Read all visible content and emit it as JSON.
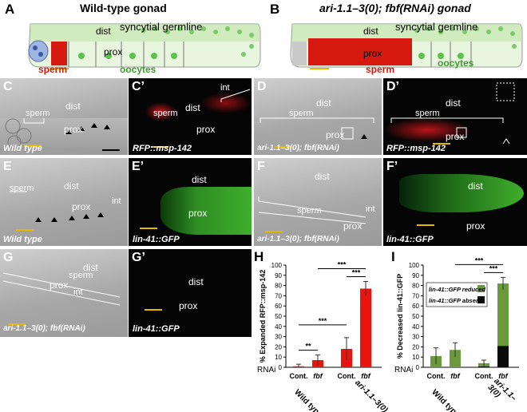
{
  "panels": {
    "A": {
      "label": "A",
      "title": "Wild-type gonad",
      "dist": "dist",
      "germline": "syncytial germline",
      "prox": "prox",
      "sperm": "sperm",
      "oocytes": "oocytes"
    },
    "B": {
      "label": "B",
      "title": "ari-1.1–3(0); fbf(RNAi) gonad",
      "dist": "dist",
      "germline": "syncytial germline",
      "prox": "prox",
      "sperm": "sperm",
      "oocytes": "oocytes"
    },
    "C": {
      "label": "C",
      "sperm": "sperm",
      "dist": "dist",
      "prox": "prox",
      "caption": "Wild type"
    },
    "C2": {
      "label": "C’",
      "int": "int",
      "dist": "dist",
      "sperm": "sperm",
      "prox": "prox",
      "caption": "RFP::msp-142"
    },
    "D": {
      "label": "D",
      "dist": "dist",
      "sperm": "sperm",
      "prox": "prox",
      "caption": "ari-1.1–3(0); fbf(RNAi)"
    },
    "D2": {
      "label": "D’",
      "dist": "dist",
      "sperm": "sperm",
      "prox": "prox",
      "caption": "RFP::msp-142"
    },
    "E": {
      "label": "E",
      "sperm": "sperm",
      "dist": "dist",
      "prox": "prox",
      "int": "int",
      "caption": "Wild type"
    },
    "E2": {
      "label": "E’",
      "dist": "dist",
      "prox": "prox",
      "caption": "lin-41::GFP"
    },
    "F": {
      "label": "F",
      "dist": "dist",
      "sperm": "sperm",
      "prox": "prox",
      "int": "int",
      "caption": "ari-1.1–3(0); fbf(RNAi)"
    },
    "F2": {
      "label": "F’",
      "dist": "dist",
      "prox": "prox",
      "caption": "lin-41::GFP"
    },
    "G": {
      "label": "G",
      "dist": "dist",
      "sperm": "sperm",
      "prox": "prox",
      "int": "int",
      "caption": "ari-1.1–3(0); fbf(RNAi)"
    },
    "G2": {
      "label": "G’",
      "dist": "dist",
      "prox": "prox",
      "caption": "lin-41::GFP"
    },
    "H": {
      "label": "H",
      "rnai": "RNAi",
      "group1": "Wild type",
      "group2": "ari-1.1–3(0)"
    },
    "I": {
      "label": "I",
      "rnai": "RNAi",
      "group1": "Wild type",
      "group2": "ari-1.1–3(0)"
    }
  },
  "chart_data": [
    {
      "type": "bar",
      "title": "",
      "ylabel": "% Expanded RFP::msp-142",
      "ylim": [
        0,
        100
      ],
      "yticks": [
        0,
        10,
        20,
        30,
        40,
        50,
        60,
        70,
        80,
        90,
        100
      ],
      "categories": [
        "Cont.",
        "fbf",
        "Cont.",
        "fbf"
      ],
      "groups": [
        "Wild type",
        "ari-1.1–3(0)"
      ],
      "values": [
        1,
        7,
        18,
        77
      ],
      "errors": [
        2,
        5,
        11,
        7
      ],
      "color": "#e8150f",
      "significance": [
        {
          "between": [
            0,
            1
          ],
          "label": "**"
        },
        {
          "between": [
            2,
            3
          ],
          "label": "***"
        },
        {
          "between": [
            0,
            2
          ],
          "label": "***"
        },
        {
          "between": [
            1,
            3
          ],
          "label": "***"
        }
      ]
    },
    {
      "type": "bar",
      "title": "",
      "ylabel": "% Decreased lin-41::GFP",
      "ylim": [
        0,
        100
      ],
      "yticks": [
        0,
        10,
        20,
        30,
        40,
        50,
        60,
        70,
        80,
        90,
        100
      ],
      "categories": [
        "Cont.",
        "fbf",
        "Cont.",
        "fbf"
      ],
      "groups": [
        "Wild type",
        "ari-1.1–3(0)"
      ],
      "stacked": true,
      "series": [
        {
          "name": "lin-41::GFP absent",
          "values": [
            0,
            0,
            1,
            21
          ],
          "color": "#0a0a0a"
        },
        {
          "name": "lin-41::GFP reduced",
          "values": [
            11,
            17,
            3,
            61
          ],
          "color": "#6a9a3c"
        }
      ],
      "errors": [
        8,
        7,
        3,
        6
      ],
      "significance": [
        {
          "between": [
            2,
            3
          ],
          "label": "***"
        },
        {
          "between": [
            1,
            3
          ],
          "label": "***"
        }
      ],
      "legend_position": "top-left"
    }
  ]
}
